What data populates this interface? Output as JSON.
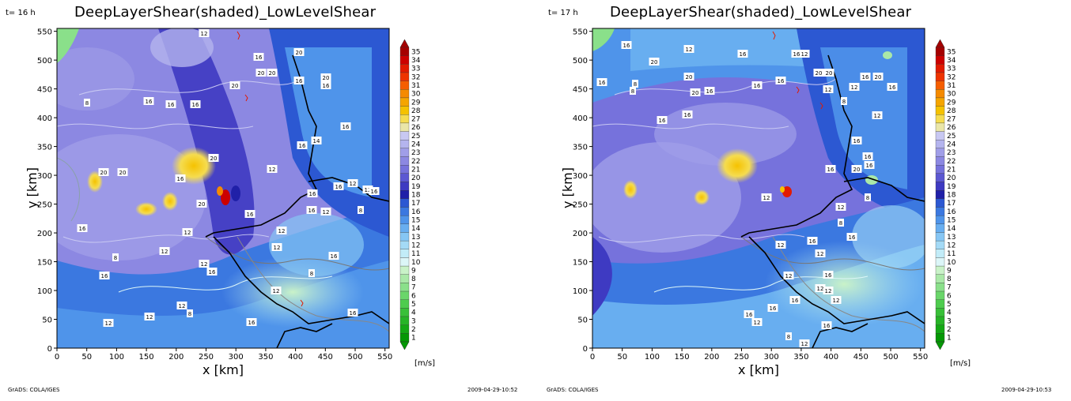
{
  "panels": [
    {
      "time_label": "t= 16 h",
      "title": "DeepLayerShear(shaded)_LowLevelShear",
      "x_axis_label": "x [km]",
      "y_axis_label": "y [km]",
      "x_ticks": [
        "0",
        "50",
        "100",
        "150",
        "200",
        "250",
        "300",
        "350",
        "400",
        "450",
        "500",
        "550"
      ],
      "y_ticks": [
        "0",
        "50",
        "100",
        "150",
        "200",
        "250",
        "300",
        "350",
        "400",
        "450",
        "500",
        "550"
      ],
      "contour_labels": [
        "12",
        "16",
        "20",
        "20",
        "20",
        "20",
        "16",
        "20",
        "16",
        "8",
        "16",
        "16",
        "16",
        "16",
        "16",
        "14",
        "12",
        "20",
        "20",
        "20",
        "16",
        "20",
        "16",
        "12",
        "16",
        "16",
        "8",
        "16",
        "16",
        "16",
        "12",
        "12",
        "12",
        "12",
        "8",
        "12",
        "16",
        "16",
        "8",
        "12",
        "12",
        "8",
        "12",
        "12",
        "16",
        "16",
        "16",
        "12",
        "12"
      ],
      "colorbar_unit": "[m/s]",
      "footer_left": "GrADS: COLA/IGES",
      "footer_right": "2009-04-29-10:52"
    },
    {
      "time_label": "t= 17 h",
      "title": "DeepLayerShear(shaded)_LowLevelShear",
      "x_axis_label": "x [km]",
      "y_axis_label": "y [km]",
      "x_ticks": [
        "0",
        "50",
        "100",
        "150",
        "200",
        "250",
        "300",
        "350",
        "400",
        "450",
        "500",
        "550"
      ],
      "y_ticks": [
        "0",
        "50",
        "100",
        "150",
        "200",
        "250",
        "300",
        "350",
        "400",
        "450",
        "500",
        "550"
      ],
      "contour_labels": [
        "12",
        "16",
        "12",
        "16",
        "8",
        "20",
        "16",
        "20",
        "12",
        "16",
        "8",
        "12",
        "16",
        "16",
        "20",
        "20",
        "20",
        "16",
        "16",
        "16",
        "16",
        "16",
        "20",
        "12",
        "8",
        "16",
        "16",
        "20",
        "16",
        "16",
        "12",
        "8",
        "16",
        "12",
        "12",
        "16",
        "12",
        "12",
        "16",
        "16",
        "12",
        "8",
        "12",
        "16",
        "16",
        "12",
        "12",
        "16",
        "8",
        "12"
      ],
      "colorbar_unit": "[m/s]",
      "footer_left": "GrADS: COLA/IGES",
      "footer_right": "2009-04-29-10:53"
    }
  ],
  "colorbar": {
    "levels": [
      "35",
      "34",
      "33",
      "32",
      "31",
      "30",
      "29",
      "28",
      "27",
      "26",
      "25",
      "24",
      "23",
      "22",
      "21",
      "20",
      "19",
      "18",
      "17",
      "16",
      "15",
      "14",
      "13",
      "12",
      "11",
      "10",
      "9",
      "8",
      "7",
      "6",
      "5",
      "4",
      "3",
      "2",
      "1"
    ],
    "colors": [
      "#a50000",
      "#cc0000",
      "#e21a00",
      "#ee3300",
      "#f55e00",
      "#f58a00",
      "#f5a500",
      "#f5c200",
      "#f5dc50",
      "#eae6a8",
      "#c8c8f2",
      "#b4b4ee",
      "#a09ee8",
      "#8c88e2",
      "#7672dc",
      "#5c58d2",
      "#3e3ac2",
      "#2020a8",
      "#2c58d2",
      "#3b78e0",
      "#4f94ea",
      "#68aef0",
      "#86c6f4",
      "#a4daf6",
      "#c2ecf8",
      "#dcf6f8",
      "#c9f2c8",
      "#aae8a8",
      "#8ae08a",
      "#6ad66a",
      "#4ecc4e",
      "#38c038",
      "#26b426",
      "#14a814",
      "#049804"
    ]
  }
}
